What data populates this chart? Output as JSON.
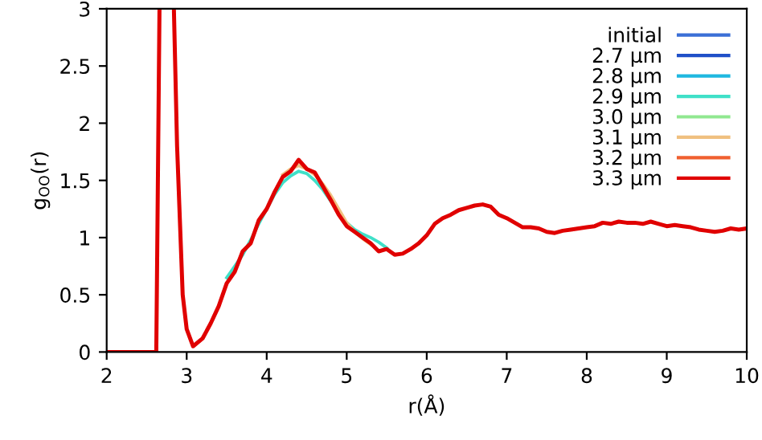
{
  "chart_data": {
    "type": "line",
    "xlabel": "r(Å)",
    "ylabel": "g$_{OO}$(r)",
    "xlim": [
      2,
      10
    ],
    "ylim": [
      0,
      3
    ],
    "xticks": [
      2,
      3,
      4,
      5,
      6,
      7,
      8,
      9,
      10
    ],
    "yticks": [
      0,
      0.5,
      1,
      1.5,
      2,
      2.5,
      3
    ],
    "grid": false,
    "legend": "top right",
    "line_style": "solid",
    "marker": "none",
    "series": [
      {
        "name": "initial",
        "color": "#3b6fd6"
      },
      {
        "name": "2.7 µm",
        "color": "#2050c8"
      },
      {
        "name": "2.8 µm",
        "color": "#1fb8e0"
      },
      {
        "name": "2.9 µm",
        "color": "#40e0c8",
        "x": [
          3.5,
          3.6,
          3.7,
          3.8,
          3.9,
          4.0,
          4.1,
          4.2,
          4.3,
          4.4,
          4.5,
          4.6,
          4.7,
          4.8,
          4.9,
          5.0,
          5.1,
          5.2,
          5.3,
          5.4,
          5.5
        ],
        "values": [
          0.65,
          0.75,
          0.85,
          0.98,
          1.12,
          1.25,
          1.38,
          1.48,
          1.54,
          1.58,
          1.56,
          1.5,
          1.42,
          1.32,
          null,
          1.13,
          1.07,
          1.03,
          1.0,
          0.96,
          0.91
        ]
      },
      {
        "name": "3.0 µm",
        "color": "#90e890"
      },
      {
        "name": "3.1 µm",
        "color": "#f0c080",
        "x": [
          4.2,
          4.3,
          4.4,
          4.5,
          4.6,
          4.7,
          4.8,
          4.9,
          5.0,
          5.1,
          5.2,
          5.3
        ],
        "values": [
          1.55,
          1.6,
          1.63,
          1.6,
          1.55,
          1.47,
          1.37,
          1.25,
          1.13,
          1.05,
          0.99,
          0.94
        ]
      },
      {
        "name": "3.2 µm",
        "color": "#f06030"
      },
      {
        "name": "3.3 µm",
        "color": "#e00000",
        "x": [
          2.0,
          2.62,
          2.66,
          2.75,
          2.84,
          2.88,
          2.95,
          3.0,
          3.08,
          3.2,
          3.3,
          3.4,
          3.5,
          3.6,
          3.7,
          3.8,
          3.9,
          4.0,
          4.1,
          4.2,
          4.3,
          4.4,
          4.5,
          4.6,
          4.7,
          4.8,
          4.9,
          5.0,
          5.1,
          5.2,
          5.3,
          5.4,
          5.5,
          5.6,
          5.7,
          5.8,
          5.9,
          6.0,
          6.1,
          6.2,
          6.3,
          6.4,
          6.5,
          6.6,
          6.7,
          6.8,
          6.9,
          7.0,
          7.1,
          7.2,
          7.3,
          7.4,
          7.5,
          7.6,
          7.7,
          7.8,
          7.9,
          8.0,
          8.1,
          8.2,
          8.3,
          8.4,
          8.5,
          8.6,
          8.7,
          8.8,
          8.9,
          9.0,
          9.1,
          9.2,
          9.3,
          9.4,
          9.5,
          9.6,
          9.7,
          9.8,
          9.9,
          10.0
        ],
        "values": [
          0,
          0,
          3,
          null,
          3,
          1.8,
          0.5,
          0.2,
          0.05,
          0.12,
          0.25,
          0.4,
          0.6,
          0.7,
          0.88,
          0.95,
          1.15,
          1.25,
          1.4,
          1.53,
          1.58,
          1.68,
          1.6,
          1.57,
          1.45,
          1.33,
          1.2,
          1.1,
          1.05,
          1.0,
          0.95,
          0.88,
          0.9,
          0.85,
          0.86,
          0.9,
          0.95,
          1.02,
          1.12,
          1.17,
          1.2,
          1.24,
          1.26,
          1.28,
          1.29,
          1.27,
          1.2,
          1.17,
          1.13,
          1.09,
          1.09,
          1.08,
          1.05,
          1.04,
          1.06,
          1.07,
          1.08,
          1.09,
          1.1,
          1.13,
          1.12,
          1.14,
          1.13,
          1.13,
          1.12,
          1.14,
          1.12,
          1.1,
          1.11,
          1.1,
          1.09,
          1.07,
          1.06,
          1.05,
          1.06,
          1.08,
          1.07,
          1.08
        ]
      }
    ]
  }
}
